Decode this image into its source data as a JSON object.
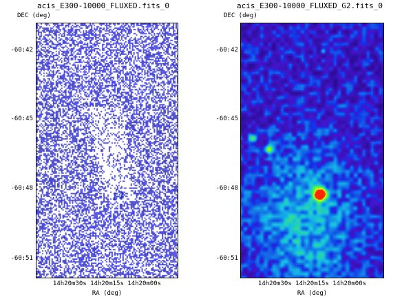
{
  "left": {
    "title": "acis_E300-10000_FLUXED.fits_0",
    "y_axis_label": "DEC (deg)",
    "y_ticks": [
      "-60:42",
      "-60:45",
      "-60:48",
      "-60:51"
    ],
    "x_ticks": "14h20m30s 14h20m15s 14h20m00s",
    "x_axis_label": "RA (deg)"
  },
  "right": {
    "title": "acis_E300-10000_FLUXED_G2.fits_0",
    "y_axis_label": "DEC (deg)",
    "y_ticks": [
      "-60:42",
      "-60:45",
      "-60:48",
      "-60:51"
    ],
    "x_ticks": "14h20m30s 14h20m15s 14h20m00s",
    "x_axis_label": "RA (deg)"
  },
  "colors": {
    "raw_pixel": "#3b3bd6",
    "smoothed_background": "#1530e8",
    "bright_source": "#ff2a00"
  }
}
